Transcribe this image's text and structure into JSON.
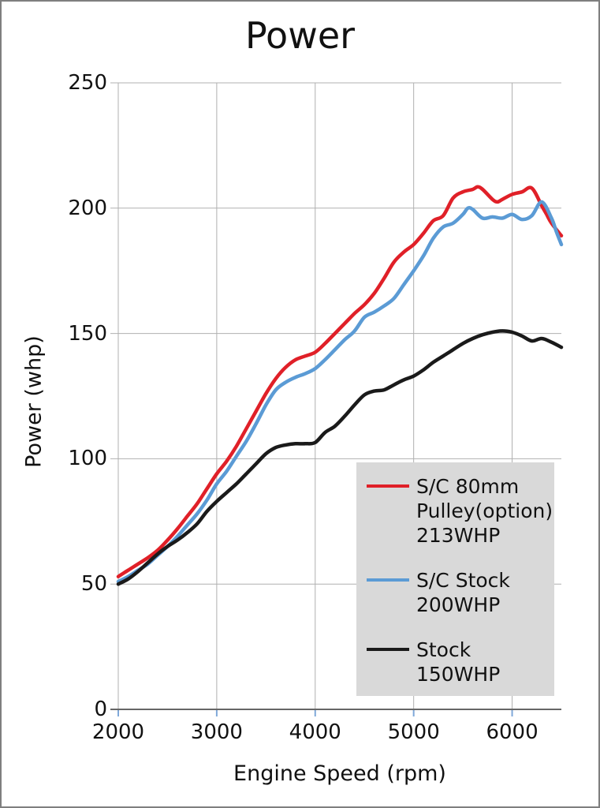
{
  "window": {
    "background": "#ffffff",
    "border_color": "#7f7f7f"
  },
  "chart_data": {
    "type": "line",
    "title": "Power",
    "xlabel": "Engine Speed (rpm)",
    "ylabel": "Power (whp)",
    "xlim": [
      2000,
      6500
    ],
    "ylim": [
      0,
      250
    ],
    "x_ticks": [
      2000,
      3000,
      4000,
      5000,
      6000
    ],
    "y_ticks": [
      0,
      50,
      100,
      150,
      200,
      250
    ],
    "grid": true,
    "grid_color": "#b0b0b0",
    "axis_line_color": "#666666",
    "x_minor_tick_color": "#7fa8d9",
    "legend_position": "inside-bottom-right",
    "legend_background": "#d9d9d9",
    "series": [
      {
        "name": "S/C 80mm Pulley(option) 213WHP",
        "legend_lines": [
          "S/C 80mm",
          "Pulley(option)",
          "213WHP"
        ],
        "peak_whp": 213,
        "color": "#e02028",
        "points": [
          [
            2000,
            53
          ],
          [
            2100,
            55.5
          ],
          [
            2200,
            58
          ],
          [
            2300,
            60.5
          ],
          [
            2400,
            63.5
          ],
          [
            2500,
            67.5
          ],
          [
            2600,
            72
          ],
          [
            2700,
            77
          ],
          [
            2800,
            82
          ],
          [
            2900,
            88
          ],
          [
            3000,
            94
          ],
          [
            3100,
            99
          ],
          [
            3200,
            105
          ],
          [
            3300,
            112
          ],
          [
            3400,
            119
          ],
          [
            3500,
            126
          ],
          [
            3600,
            132
          ],
          [
            3700,
            136.5
          ],
          [
            3800,
            139.5
          ],
          [
            3900,
            141
          ],
          [
            4000,
            142.5
          ],
          [
            4100,
            146
          ],
          [
            4200,
            150
          ],
          [
            4300,
            154
          ],
          [
            4400,
            158
          ],
          [
            4500,
            161.5
          ],
          [
            4600,
            166
          ],
          [
            4700,
            172
          ],
          [
            4800,
            178.5
          ],
          [
            4900,
            182.5
          ],
          [
            5000,
            185.5
          ],
          [
            5100,
            190
          ],
          [
            5200,
            195
          ],
          [
            5300,
            197
          ],
          [
            5400,
            204
          ],
          [
            5500,
            206.5
          ],
          [
            5600,
            207.5
          ],
          [
            5650,
            208.5
          ],
          [
            5700,
            207.5
          ],
          [
            5800,
            203.5
          ],
          [
            5850,
            202.5
          ],
          [
            5900,
            203.5
          ],
          [
            6000,
            205.5
          ],
          [
            6100,
            206.5
          ],
          [
            6200,
            208
          ],
          [
            6300,
            201
          ],
          [
            6350,
            197.5
          ],
          [
            6400,
            194
          ],
          [
            6500,
            189
          ]
        ]
      },
      {
        "name": "S/C Stock 200WHP",
        "legend_lines": [
          "S/C Stock",
          "200WHP"
        ],
        "peak_whp": 200,
        "color": "#5b9bd5",
        "points": [
          [
            2000,
            51
          ],
          [
            2100,
            53
          ],
          [
            2200,
            55.5
          ],
          [
            2300,
            58
          ],
          [
            2400,
            61.5
          ],
          [
            2500,
            65
          ],
          [
            2600,
            69
          ],
          [
            2700,
            73.5
          ],
          [
            2800,
            78
          ],
          [
            2900,
            83.5
          ],
          [
            3000,
            90
          ],
          [
            3100,
            95
          ],
          [
            3200,
            101
          ],
          [
            3300,
            107
          ],
          [
            3400,
            114
          ],
          [
            3500,
            121.5
          ],
          [
            3600,
            127.5
          ],
          [
            3700,
            130.5
          ],
          [
            3800,
            132.5
          ],
          [
            3900,
            134
          ],
          [
            4000,
            136
          ],
          [
            4100,
            139.5
          ],
          [
            4200,
            143.5
          ],
          [
            4300,
            147.5
          ],
          [
            4400,
            151
          ],
          [
            4500,
            156.5
          ],
          [
            4600,
            158.5
          ],
          [
            4700,
            161
          ],
          [
            4800,
            164
          ],
          [
            4900,
            169.5
          ],
          [
            5000,
            175
          ],
          [
            5100,
            181
          ],
          [
            5200,
            188
          ],
          [
            5300,
            192.5
          ],
          [
            5400,
            194
          ],
          [
            5500,
            197.5
          ],
          [
            5550,
            200
          ],
          [
            5600,
            199.5
          ],
          [
            5700,
            196
          ],
          [
            5800,
            196.5
          ],
          [
            5900,
            196
          ],
          [
            6000,
            197.5
          ],
          [
            6100,
            195.5
          ],
          [
            6200,
            197
          ],
          [
            6300,
            202.5
          ],
          [
            6400,
            196
          ],
          [
            6450,
            190.5
          ],
          [
            6500,
            185.5
          ]
        ]
      },
      {
        "name": "Stock 150WHP",
        "legend_lines": [
          "Stock",
          "150WHP"
        ],
        "peak_whp": 150,
        "color": "#1a1a1a",
        "points": [
          [
            2000,
            50
          ],
          [
            2100,
            52
          ],
          [
            2200,
            55
          ],
          [
            2300,
            58.5
          ],
          [
            2400,
            62
          ],
          [
            2500,
            65
          ],
          [
            2600,
            67.5
          ],
          [
            2700,
            70.5
          ],
          [
            2800,
            74
          ],
          [
            2900,
            79
          ],
          [
            3000,
            83
          ],
          [
            3100,
            86.5
          ],
          [
            3200,
            90
          ],
          [
            3300,
            94
          ],
          [
            3400,
            98
          ],
          [
            3500,
            102
          ],
          [
            3600,
            104.5
          ],
          [
            3700,
            105.5
          ],
          [
            3800,
            106
          ],
          [
            3900,
            106
          ],
          [
            4000,
            106.5
          ],
          [
            4100,
            110.5
          ],
          [
            4200,
            113
          ],
          [
            4300,
            117
          ],
          [
            4400,
            121.5
          ],
          [
            4500,
            125.5
          ],
          [
            4600,
            127
          ],
          [
            4700,
            127.5
          ],
          [
            4800,
            129.5
          ],
          [
            4900,
            131.5
          ],
          [
            5000,
            133
          ],
          [
            5100,
            135.5
          ],
          [
            5200,
            138.5
          ],
          [
            5300,
            141
          ],
          [
            5400,
            143.5
          ],
          [
            5500,
            146
          ],
          [
            5600,
            148
          ],
          [
            5700,
            149.5
          ],
          [
            5800,
            150.5
          ],
          [
            5900,
            151
          ],
          [
            6000,
            150.5
          ],
          [
            6100,
            149
          ],
          [
            6200,
            147
          ],
          [
            6300,
            148
          ],
          [
            6400,
            146.5
          ],
          [
            6500,
            144.5
          ]
        ]
      }
    ]
  }
}
